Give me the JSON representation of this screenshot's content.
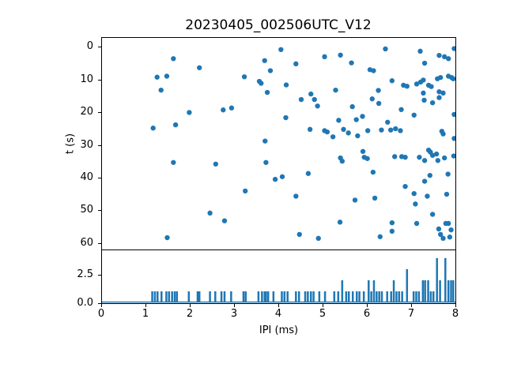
{
  "title": "20230405_002506UTC_V12",
  "accent_color": "#1f77b4",
  "spine_color": "#000000",
  "chart_data": [
    {
      "type": "scatter",
      "title": "20230405_002506UTC_V12",
      "xlabel": "",
      "ylabel": "t (s)",
      "xlim": [
        0,
        8
      ],
      "ylim": [
        62,
        -3
      ],
      "y_axis_inverted": true,
      "grid": false,
      "legend": "none",
      "y_ticks": [
        0,
        10,
        20,
        30,
        40,
        50,
        60
      ],
      "marker_color": "#1f77b4",
      "points": [
        [
          1.62,
          3.4
        ],
        [
          2.21,
          6.2
        ],
        [
          1.25,
          9.1
        ],
        [
          1.47,
          8.8
        ],
        [
          1.34,
          13.1
        ],
        [
          1.98,
          20.0
        ],
        [
          1.67,
          23.8
        ],
        [
          1.16,
          24.8
        ],
        [
          4.06,
          0.6
        ],
        [
          3.69,
          4.0
        ],
        [
          5.05,
          2.8
        ],
        [
          4.4,
          5.0
        ],
        [
          3.82,
          7.1
        ],
        [
          3.23,
          9.0
        ],
        [
          3.57,
          10.4
        ],
        [
          3.61,
          11.0
        ],
        [
          4.18,
          11.5
        ],
        [
          3.75,
          13.8
        ],
        [
          5.3,
          13.1
        ],
        [
          4.74,
          14.3
        ],
        [
          4.52,
          16.0
        ],
        [
          4.82,
          16.0
        ],
        [
          4.89,
          18.0
        ],
        [
          2.75,
          19.2
        ],
        [
          2.94,
          18.6
        ],
        [
          4.17,
          21.6
        ],
        [
          5.37,
          22.4
        ],
        [
          4.72,
          25.2
        ],
        [
          5.05,
          25.6
        ],
        [
          5.11,
          26.0
        ],
        [
          5.24,
          27.5
        ],
        [
          3.7,
          28.8
        ],
        [
          6.43,
          0.4
        ],
        [
          7.22,
          1.1
        ],
        [
          5.41,
          2.3
        ],
        [
          7.65,
          2.4
        ],
        [
          7.77,
          2.8
        ],
        [
          7.86,
          3.4
        ],
        [
          7.99,
          0.3
        ],
        [
          5.66,
          4.7
        ],
        [
          7.32,
          4.8
        ],
        [
          6.08,
          6.8
        ],
        [
          6.16,
          7.1
        ],
        [
          6.58,
          10.2
        ],
        [
          6.84,
          11.6
        ],
        [
          6.92,
          11.9
        ],
        [
          7.14,
          11.2
        ],
        [
          7.23,
          10.6
        ],
        [
          7.29,
          10.0
        ],
        [
          7.41,
          11.6
        ],
        [
          7.47,
          12.0
        ],
        [
          7.61,
          9.6
        ],
        [
          7.68,
          9.2
        ],
        [
          7.86,
          8.8
        ],
        [
          7.93,
          9.2
        ],
        [
          7.97,
          9.6
        ],
        [
          7.29,
          14.0
        ],
        [
          7.65,
          13.6
        ],
        [
          7.74,
          14.0
        ],
        [
          6.27,
          13.2
        ],
        [
          6.13,
          15.8
        ],
        [
          6.28,
          17.2
        ],
        [
          7.31,
          16.2
        ],
        [
          7.5,
          17.0
        ],
        [
          7.65,
          15.4
        ],
        [
          5.68,
          18.2
        ],
        [
          6.79,
          19.1
        ],
        [
          7.08,
          20.8
        ],
        [
          7.99,
          20.6
        ],
        [
          5.77,
          22.2
        ],
        [
          5.91,
          21.2
        ],
        [
          6.48,
          23.0
        ],
        [
          6.66,
          25.0
        ],
        [
          6.55,
          25.4
        ],
        [
          6.34,
          25.4
        ],
        [
          6.03,
          25.6
        ],
        [
          6.77,
          25.6
        ],
        [
          5.59,
          26.3
        ],
        [
          5.8,
          27.2
        ],
        [
          5.48,
          25.2
        ],
        [
          7.71,
          25.8
        ],
        [
          7.74,
          26.6
        ],
        [
          7.99,
          28.0
        ],
        [
          1.62,
          35.4
        ],
        [
          2.58,
          35.9
        ],
        [
          2.45,
          51.0
        ],
        [
          1.48,
          58.6
        ],
        [
          3.72,
          35.4
        ],
        [
          3.93,
          40.6
        ],
        [
          4.09,
          39.8
        ],
        [
          4.68,
          38.8
        ],
        [
          3.25,
          44.2
        ],
        [
          4.4,
          45.8
        ],
        [
          2.78,
          53.4
        ],
        [
          4.48,
          57.6
        ],
        [
          4.91,
          58.8
        ],
        [
          5.92,
          32.0
        ],
        [
          5.41,
          34.0
        ],
        [
          5.45,
          35.0
        ],
        [
          5.95,
          33.8
        ],
        [
          6.02,
          34.2
        ],
        [
          6.64,
          33.6
        ],
        [
          6.8,
          33.6
        ],
        [
          6.88,
          33.8
        ],
        [
          7.2,
          33.8
        ],
        [
          7.32,
          34.8
        ],
        [
          7.41,
          31.6
        ],
        [
          7.45,
          32.2
        ],
        [
          7.5,
          33.2
        ],
        [
          7.59,
          32.8
        ],
        [
          7.62,
          34.8
        ],
        [
          7.77,
          34.0
        ],
        [
          7.98,
          33.4
        ],
        [
          6.15,
          38.4
        ],
        [
          7.44,
          39.4
        ],
        [
          7.85,
          39.0
        ],
        [
          6.88,
          42.8
        ],
        [
          7.32,
          41.2
        ],
        [
          7.08,
          45.0
        ],
        [
          7.38,
          45.8
        ],
        [
          7.82,
          45.2
        ],
        [
          5.74,
          47.0
        ],
        [
          6.19,
          46.4
        ],
        [
          7.11,
          48.2
        ],
        [
          7.5,
          51.4
        ],
        [
          5.4,
          53.8
        ],
        [
          6.58,
          54.0
        ],
        [
          6.58,
          56.6
        ],
        [
          7.14,
          54.2
        ],
        [
          7.8,
          54.2
        ],
        [
          7.86,
          54.2
        ],
        [
          7.64,
          55.9
        ],
        [
          7.68,
          57.6
        ],
        [
          7.74,
          58.8
        ],
        [
          7.89,
          58.4
        ],
        [
          7.92,
          56.2
        ],
        [
          6.31,
          58.3
        ]
      ]
    },
    {
      "type": "bar",
      "xlabel": "IPI (ms)",
      "ylabel": "",
      "xlim": [
        0,
        8
      ],
      "ylim": [
        0,
        4.7
      ],
      "grid": false,
      "legend": "none",
      "x_ticks": [
        0,
        1,
        2,
        3,
        4,
        5,
        6,
        7,
        8
      ],
      "y_ticks": [
        {
          "value": 0,
          "label": "0.0"
        },
        {
          "value": 2.5,
          "label": "2.5"
        }
      ],
      "bar_color": "#1f77b4",
      "bar_width_ms": 0.045,
      "baseline_at_zero": true,
      "bars": [
        [
          1.14,
          1
        ],
        [
          1.2,
          1
        ],
        [
          1.26,
          1
        ],
        [
          1.35,
          1
        ],
        [
          1.46,
          1
        ],
        [
          1.52,
          1
        ],
        [
          1.59,
          1
        ],
        [
          1.65,
          1
        ],
        [
          1.7,
          1
        ],
        [
          1.97,
          1
        ],
        [
          2.17,
          1
        ],
        [
          2.21,
          1
        ],
        [
          2.45,
          1
        ],
        [
          2.57,
          1
        ],
        [
          2.71,
          1
        ],
        [
          2.78,
          1
        ],
        [
          2.93,
          1
        ],
        [
          3.21,
          1
        ],
        [
          3.26,
          1
        ],
        [
          3.55,
          1
        ],
        [
          3.63,
          1
        ],
        [
          3.69,
          1
        ],
        [
          3.72,
          1
        ],
        [
          3.77,
          1
        ],
        [
          3.89,
          1
        ],
        [
          4.08,
          1
        ],
        [
          4.14,
          1
        ],
        [
          4.21,
          1
        ],
        [
          4.4,
          1
        ],
        [
          4.47,
          1
        ],
        [
          4.61,
          1
        ],
        [
          4.67,
          1
        ],
        [
          4.74,
          1
        ],
        [
          4.8,
          1
        ],
        [
          4.93,
          1
        ],
        [
          5.06,
          1
        ],
        [
          5.27,
          1
        ],
        [
          5.36,
          1
        ],
        [
          5.45,
          2
        ],
        [
          5.54,
          1
        ],
        [
          5.6,
          1
        ],
        [
          5.69,
          1
        ],
        [
          5.78,
          1
        ],
        [
          5.84,
          1
        ],
        [
          5.94,
          1
        ],
        [
          6.05,
          2
        ],
        [
          6.11,
          1
        ],
        [
          6.17,
          2
        ],
        [
          6.23,
          1
        ],
        [
          6.29,
          1
        ],
        [
          6.35,
          1
        ],
        [
          6.47,
          1
        ],
        [
          6.56,
          1
        ],
        [
          6.62,
          2
        ],
        [
          6.68,
          1
        ],
        [
          6.74,
          1
        ],
        [
          6.81,
          1
        ],
        [
          6.92,
          3
        ],
        [
          7.07,
          1
        ],
        [
          7.13,
          1
        ],
        [
          7.19,
          1
        ],
        [
          7.28,
          2
        ],
        [
          7.33,
          2
        ],
        [
          7.4,
          2
        ],
        [
          7.46,
          1
        ],
        [
          7.52,
          1
        ],
        [
          7.6,
          4
        ],
        [
          7.67,
          2
        ],
        [
          7.79,
          4
        ],
        [
          7.86,
          2
        ],
        [
          7.92,
          2
        ],
        [
          7.97,
          2
        ]
      ]
    }
  ]
}
